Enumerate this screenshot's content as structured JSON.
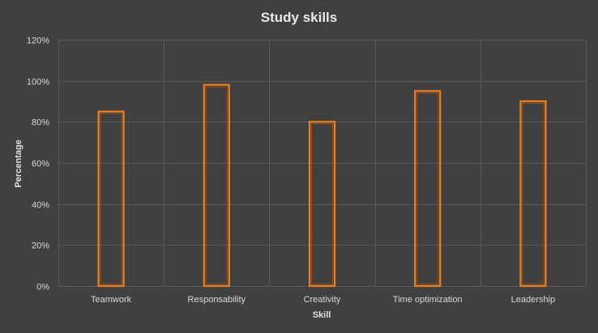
{
  "chart_data": {
    "type": "bar",
    "title": "Study skills",
    "xlabel": "Skill",
    "ylabel": "Percentage",
    "categories": [
      "Teamwork",
      "Responsability",
      "Creativity",
      "Time optimization",
      "Leadership"
    ],
    "values": [
      85,
      98,
      80,
      95,
      90
    ],
    "ylim": [
      0,
      120
    ],
    "yticks": [
      0,
      20,
      40,
      60,
      80,
      100,
      120
    ],
    "ytick_labels": [
      "0%",
      "20%",
      "40%",
      "60%",
      "80%",
      "100%",
      "120%"
    ],
    "grid": true,
    "legend": "none",
    "bar_style": "outline",
    "colors": {
      "background": "#404040",
      "bar_outline": "#f07f1a",
      "bar_glow": "#c65f10",
      "grid": "#595959",
      "text": "#d9d9d9"
    }
  }
}
